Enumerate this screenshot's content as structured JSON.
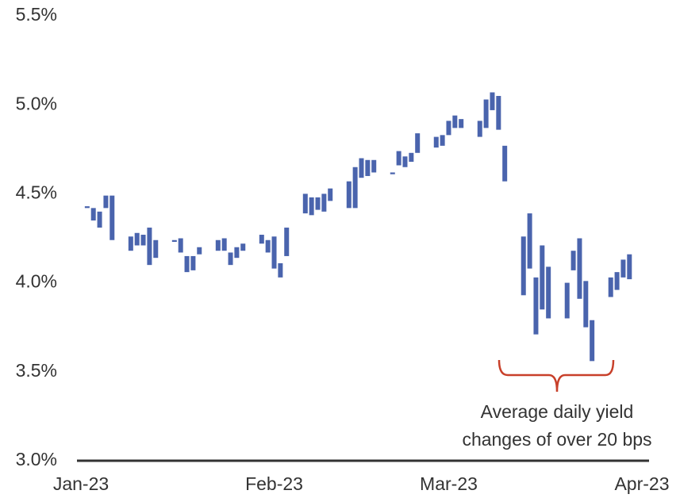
{
  "chart_data": {
    "type": "floating-bar",
    "x": [
      1,
      2,
      3,
      4,
      5,
      8,
      9,
      10,
      11,
      12,
      15,
      16,
      17,
      18,
      19,
      22,
      23,
      24,
      25,
      26,
      29,
      30,
      31,
      32,
      33,
      36,
      37,
      38,
      39,
      40,
      43,
      44,
      45,
      46,
      47,
      50,
      51,
      52,
      53,
      54,
      57,
      58,
      59,
      60,
      61,
      64,
      65,
      66,
      67,
      68,
      71,
      72,
      73,
      74,
      75,
      78,
      79,
      80,
      81,
      82,
      85,
      86,
      87,
      88
    ],
    "high": [
      4.43,
      4.42,
      4.4,
      4.49,
      4.49,
      4.26,
      4.28,
      4.27,
      4.31,
      4.24,
      4.24,
      4.25,
      4.15,
      4.15,
      4.2,
      4.24,
      4.25,
      4.17,
      4.2,
      4.22,
      4.27,
      4.24,
      4.26,
      4.11,
      4.31,
      4.5,
      4.48,
      4.48,
      4.5,
      4.53,
      4.57,
      4.65,
      4.7,
      4.69,
      4.69,
      4.62,
      4.74,
      4.71,
      4.73,
      4.84,
      4.82,
      4.83,
      4.91,
      4.94,
      4.92,
      4.91,
      5.03,
      5.07,
      5.05,
      4.77,
      4.26,
      4.39,
      4.03,
      4.21,
      4.09,
      4.0,
      4.18,
      4.25,
      4.01,
      3.79,
      4.03,
      4.06,
      4.13,
      4.16
    ],
    "low": [
      4.42,
      4.35,
      4.31,
      4.42,
      4.24,
      4.18,
      4.21,
      4.21,
      4.1,
      4.14,
      4.23,
      4.17,
      4.06,
      4.07,
      4.16,
      4.18,
      4.18,
      4.1,
      4.14,
      4.18,
      4.22,
      4.17,
      4.08,
      4.03,
      4.15,
      4.39,
      4.38,
      4.41,
      4.4,
      4.46,
      4.42,
      4.42,
      4.59,
      4.6,
      4.62,
      4.61,
      4.66,
      4.65,
      4.68,
      4.73,
      4.76,
      4.77,
      4.83,
      4.87,
      4.87,
      4.82,
      4.87,
      4.97,
      4.86,
      4.57,
      3.93,
      4.08,
      3.71,
      3.85,
      3.8,
      3.8,
      4.07,
      3.91,
      3.75,
      3.56,
      3.92,
      3.96,
      4.03,
      4.02
    ],
    "color": "#4a64ad",
    "xlim": [
      0,
      90
    ],
    "xticks": [
      {
        "value": 0,
        "label": "Jan-23"
      },
      {
        "value": 31,
        "label": "Feb-23"
      },
      {
        "value": 59,
        "label": "Mar-23"
      },
      {
        "value": 90,
        "label": "Apr-23"
      }
    ],
    "ylim": [
      3.0,
      5.5
    ],
    "yticks": [
      {
        "value": 3.0,
        "label": "3.0%"
      },
      {
        "value": 3.5,
        "label": "3.5%"
      },
      {
        "value": 4.0,
        "label": "4.0%"
      },
      {
        "value": 4.5,
        "label": "4.5%"
      },
      {
        "value": 5.0,
        "label": "5.0%"
      },
      {
        "value": 5.5,
        "label": "5.5%"
      }
    ],
    "grid": false,
    "annotation": [
      "Average daily yield",
      "changes of over 20 bps"
    ]
  }
}
